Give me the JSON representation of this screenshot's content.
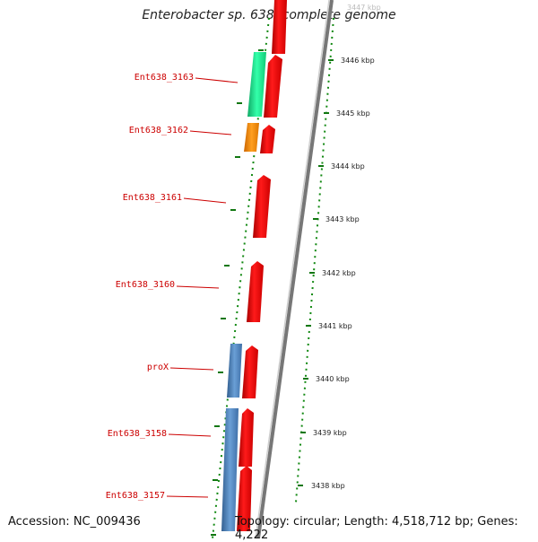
{
  "title": "Enterobacter sp. 638, complete genome",
  "accession": "Accession: NC_009436",
  "summary": "Topology: circular; Length: 4,518,712 bp; Genes: 4,222",
  "colors": {
    "backbone": "#888888",
    "gene_red": "#ff0000",
    "gene_green": "#22ee99",
    "gene_orange": "#ff8800",
    "gene_blue": "#4f86c0",
    "label_red": "#cc0000",
    "tick_green": "#117711"
  },
  "ruler": [
    {
      "label": "3447 kbp"
    },
    {
      "label": "3446 kbp"
    },
    {
      "label": "3445 kbp"
    },
    {
      "label": "3444 kbp"
    },
    {
      "label": "3443 kbp"
    },
    {
      "label": "3442 kbp"
    },
    {
      "label": "3441 kbp"
    },
    {
      "label": "3440 kbp"
    },
    {
      "label": "3439 kbp"
    },
    {
      "label": "3438 kbp"
    }
  ],
  "labels": [
    {
      "text": "Ent638_3163"
    },
    {
      "text": "Ent638_3162"
    },
    {
      "text": "Ent638_3161"
    },
    {
      "text": "Ent638_3160"
    },
    {
      "text": "proX"
    },
    {
      "text": "Ent638_3158"
    },
    {
      "text": "Ent638_3157"
    }
  ]
}
